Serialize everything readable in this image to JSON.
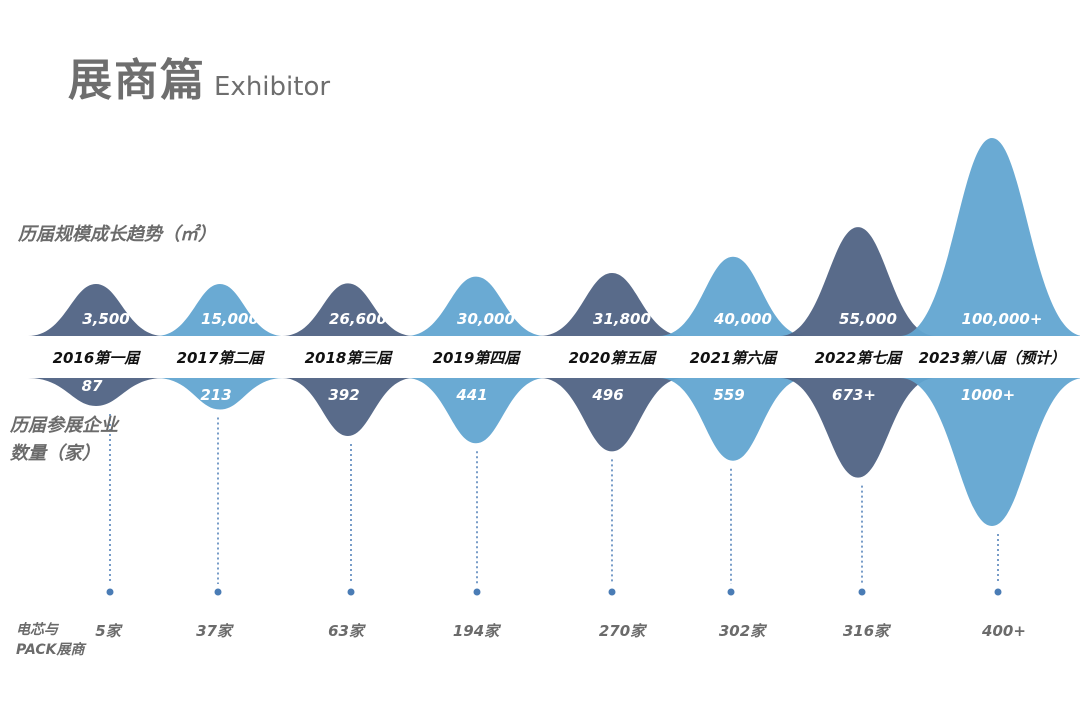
{
  "header": {
    "title_zh": "展商篇",
    "title_en": "Exhibitor"
  },
  "labels": {
    "area_trend": "历届规模成长趋势（㎡）",
    "exhibitor_count_line1": "历届参展企业",
    "exhibitor_count_line2": "数量（家）",
    "cell_pack_line1": "电芯与",
    "cell_pack_line2": "PACK展商"
  },
  "colors": {
    "dark": "#506384",
    "light": "#62a5d1",
    "band": "#ffffff"
  },
  "chart_data": {
    "type": "area",
    "categories": [
      "2016第一届",
      "2017第二届",
      "2018第三届",
      "2019第四届",
      "2020第五届",
      "2021第六届",
      "2022第七届",
      "2023第八届（预计）"
    ],
    "series": [
      {
        "name": "历届规模成长趋势（㎡）",
        "values": [
          3500,
          15000,
          26600,
          30000,
          31800,
          40000,
          55000,
          100000
        ],
        "labels": [
          "3,500",
          "15,000",
          "26,600",
          "30,000",
          "31,800",
          "40,000",
          "55,000",
          "100,000+"
        ]
      },
      {
        "name": "历届参展企业数量（家）",
        "values": [
          87,
          213,
          392,
          441,
          496,
          559,
          673,
          1000
        ],
        "labels": [
          "87",
          "213",
          "392",
          "441",
          "496",
          "559",
          "673+",
          "1000+"
        ]
      },
      {
        "name": "电芯与PACK展商",
        "values": [
          5,
          37,
          63,
          194,
          270,
          302,
          316,
          400
        ],
        "labels": [
          "5家",
          "37家",
          "63家",
          "194家",
          "270家",
          "302家",
          "316家",
          "400+"
        ]
      }
    ],
    "color_pattern": [
      "dark",
      "light",
      "dark",
      "light",
      "dark",
      "light",
      "dark",
      "light"
    ]
  }
}
